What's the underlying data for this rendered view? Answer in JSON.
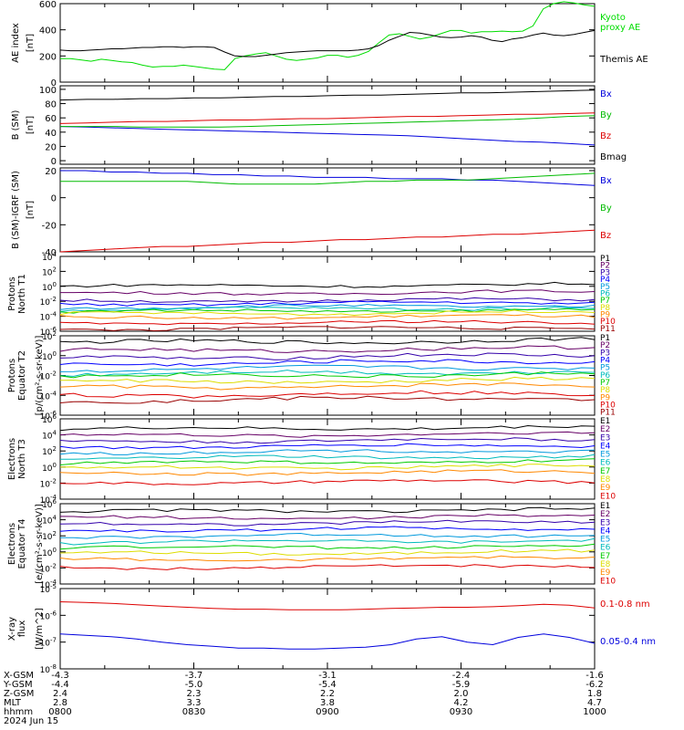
{
  "chart_data": [
    {
      "type": "line",
      "ylabel": "AE index",
      "yunit": "[nT]",
      "ylim": [
        0,
        600
      ],
      "yticks": [
        "0",
        "200",
        "400",
        "600"
      ],
      "series": [
        {
          "name": "Kyoto proxy AE",
          "color": "#00dd00",
          "values": [
            180,
            180,
            170,
            160,
            175,
            165,
            155,
            150,
            130,
            115,
            120,
            120,
            130,
            120,
            110,
            100,
            95,
            180,
            200,
            215,
            225,
            200,
            175,
            165,
            175,
            185,
            205,
            205,
            190,
            205,
            235,
            300,
            360,
            370,
            350,
            330,
            345,
            370,
            395,
            395,
            375,
            385,
            385,
            390,
            385,
            390,
            430,
            560,
            600,
            615,
            605,
            590,
            580
          ]
        },
        {
          "name": "Themis AE",
          "color": "#000000",
          "values": [
            245,
            240,
            240,
            245,
            250,
            255,
            255,
            260,
            265,
            265,
            270,
            270,
            265,
            270,
            270,
            265,
            230,
            200,
            195,
            195,
            205,
            215,
            225,
            230,
            235,
            240,
            240,
            240,
            240,
            245,
            255,
            280,
            320,
            350,
            380,
            375,
            360,
            345,
            340,
            345,
            355,
            345,
            320,
            310,
            330,
            340,
            360,
            375,
            360,
            355,
            365,
            380,
            395
          ]
        }
      ]
    },
    {
      "type": "line",
      "ylabel": "B (SM)",
      "yunit": "[nT]",
      "ylim": [
        -5,
        105
      ],
      "yticks": [
        "0",
        "20",
        "40",
        "60",
        "80",
        "100"
      ],
      "series": [
        {
          "name": "Bx",
          "color": "#0000dd",
          "values": [
            48,
            47,
            46,
            45,
            44,
            43,
            42,
            41,
            40,
            39,
            38,
            37,
            36,
            35,
            33,
            31,
            29,
            27,
            26,
            24,
            22
          ]
        },
        {
          "name": "By",
          "color": "#00bb00",
          "values": [
            48,
            48,
            48,
            47,
            47,
            47,
            47,
            48,
            49,
            50,
            51,
            52,
            53,
            54,
            55,
            56,
            57,
            58,
            60,
            62,
            63
          ]
        },
        {
          "name": "Bz",
          "color": "#dd0000",
          "values": [
            52,
            53,
            54,
            55,
            55,
            56,
            57,
            57,
            58,
            59,
            59,
            60,
            61,
            62,
            62,
            63,
            64,
            65,
            65,
            66,
            67
          ]
        },
        {
          "name": "Bmag",
          "color": "#000000",
          "values": [
            85,
            86,
            86,
            87,
            87,
            88,
            88,
            89,
            90,
            90,
            91,
            92,
            92,
            93,
            94,
            95,
            95,
            96,
            97,
            98,
            99
          ]
        }
      ]
    },
    {
      "type": "line",
      "ylabel": "B (SM)-IGRF (SM)",
      "yunit": "[nT]",
      "ylim": [
        -40,
        22
      ],
      "yticks": [
        "-40",
        "-20",
        "0",
        "20"
      ],
      "series": [
        {
          "name": "Bx",
          "color": "#0000dd",
          "values": [
            20,
            20,
            19,
            19,
            18,
            18,
            17,
            17,
            16,
            16,
            15,
            15,
            15,
            14,
            14,
            14,
            13,
            13,
            12,
            11,
            10,
            9
          ]
        },
        {
          "name": "By",
          "color": "#00bb00",
          "values": [
            12,
            12,
            12,
            12,
            12,
            12,
            11,
            10,
            10,
            10,
            10,
            11,
            12,
            12,
            13,
            13,
            13,
            14,
            15,
            16,
            17,
            18
          ]
        },
        {
          "name": "Bz",
          "color": "#dd0000",
          "values": [
            -40,
            -39,
            -38,
            -37,
            -36,
            -36,
            -35,
            -34,
            -33,
            -33,
            -32,
            -31,
            -31,
            -30,
            -29,
            -29,
            -28,
            -27,
            -27,
            -26,
            -25,
            -24
          ]
        }
      ]
    },
    {
      "type": "line",
      "log_scale": true,
      "ylabel": "Protons North T1",
      "ylim": [
        1e-06,
        10000
      ],
      "yticks": [
        "10<sup>-6</sup>",
        "10<sup>-4</sup>",
        "10<sup>-2</sup>",
        "10<sup>0</sup>",
        "10<sup>2</sup>",
        "10<sup>4</sup>"
      ],
      "series": [
        {
          "name": "P1",
          "color": "#000000",
          "level": 1.0
        },
        {
          "name": "P2",
          "color": "#660066",
          "level": 0.1
        },
        {
          "name": "P3",
          "color": "#3300aa",
          "level": 0.01
        },
        {
          "name": "P4",
          "color": "#0000ff",
          "level": 0.004
        },
        {
          "name": "P5",
          "color": "#0099dd",
          "level": 0.0015
        },
        {
          "name": "P6",
          "color": "#00bbbb",
          "level": 0.0008
        },
        {
          "name": "P7",
          "color": "#00cc00",
          "level": 0.0004
        },
        {
          "name": "P8",
          "color": "#dddd00",
          "level": 0.0002
        },
        {
          "name": "P9",
          "color": "#ff8800",
          "level": 6e-05
        },
        {
          "name": "P10",
          "color": "#dd0000",
          "level": 1e-05
        },
        {
          "name": "P11",
          "color": "#990000",
          "level": 2e-06
        }
      ]
    },
    {
      "type": "line",
      "log_scale": true,
      "ylabel": "Protons Equator T2",
      "yunit": "[p/(cm²-s-sr-keV)]",
      "ylim": [
        1e-06,
        100
      ],
      "yticks": [
        "10<sup>-6</sup>",
        "10<sup>-4</sup>",
        "10<sup>-2</sup>",
        "10<sup>0</sup>",
        "10<sup>2</sup>"
      ],
      "series": [
        {
          "name": "P1",
          "color": "#000000",
          "level": 20
        },
        {
          "name": "P2",
          "color": "#660066",
          "level": 3
        },
        {
          "name": "P3",
          "color": "#3300aa",
          "level": 0.6
        },
        {
          "name": "P4",
          "color": "#0000ff",
          "level": 0.15
        },
        {
          "name": "P5",
          "color": "#0099dd",
          "level": 0.04
        },
        {
          "name": "P6",
          "color": "#00bbbb",
          "level": 0.015
        },
        {
          "name": "P7",
          "color": "#00cc00",
          "level": 0.008
        },
        {
          "name": "P8",
          "color": "#dddd00",
          "level": 0.002
        },
        {
          "name": "P9",
          "color": "#ff8800",
          "level": 0.0006
        },
        {
          "name": "P10",
          "color": "#dd0000",
          "level": 0.0001
        },
        {
          "name": "P11",
          "color": "#990000",
          "level": 3e-05
        }
      ]
    },
    {
      "type": "line",
      "log_scale": true,
      "ylabel": "Electrons North T3",
      "ylim": [
        0.0001,
        1000000.0
      ],
      "yticks": [
        "10<sup>-4</sup>",
        "10<sup>-2</sup>",
        "10<sup>0</sup>",
        "10<sup>2</sup>",
        "10<sup>4</sup>",
        "10<sup>6</sup>"
      ],
      "series": [
        {
          "name": "E1",
          "color": "#000000",
          "level": 50000
        },
        {
          "name": "E2",
          "color": "#660066",
          "level": 8000
        },
        {
          "name": "E3",
          "color": "#3300aa",
          "level": 1500
        },
        {
          "name": "E4",
          "color": "#0000ff",
          "level": 300
        },
        {
          "name": "E5",
          "color": "#0099dd",
          "level": 60
        },
        {
          "name": "E6",
          "color": "#00bbbb",
          "level": 12
        },
        {
          "name": "E7",
          "color": "#00cc00",
          "level": 3
        },
        {
          "name": "E8",
          "color": "#dddd00",
          "level": 0.7
        },
        {
          "name": "E9",
          "color": "#ff8800",
          "level": 0.15
        },
        {
          "name": "E10",
          "color": "#dd0000",
          "level": 0.01
        }
      ]
    },
    {
      "type": "line",
      "log_scale": true,
      "ylabel": "Electrons Equator T4",
      "yunit": "[e/(cm²-s-sr-keV)]",
      "ylim": [
        0.0001,
        1000000.0
      ],
      "yticks": [
        "10<sup>-4</sup>",
        "10<sup>-2</sup>",
        "10<sup>0</sup>",
        "10<sup>2</sup>",
        "10<sup>4</sup>",
        "10<sup>6</sup>"
      ],
      "series": [
        {
          "name": "E1",
          "color": "#000000",
          "level": 100000
        },
        {
          "name": "E2",
          "color": "#660066",
          "level": 15000
        },
        {
          "name": "E3",
          "color": "#3300aa",
          "level": 3000
        },
        {
          "name": "E4",
          "color": "#0000ff",
          "level": 500
        },
        {
          "name": "E5",
          "color": "#0099dd",
          "level": 80
        },
        {
          "name": "E6",
          "color": "#00bbbb",
          "level": 15
        },
        {
          "name": "E7",
          "color": "#00cc00",
          "level": 3
        },
        {
          "name": "E8",
          "color": "#dddd00",
          "level": 0.6
        },
        {
          "name": "E9",
          "color": "#ff8800",
          "level": 0.1
        },
        {
          "name": "E10",
          "color": "#dd0000",
          "level": 0.01
        }
      ]
    },
    {
      "type": "line",
      "log_scale": true,
      "ylabel": "X-ray flux",
      "yunit": "[W/m^2]",
      "ylim": [
        1e-08,
        1e-05
      ],
      "yticks": [
        "10<sup>-8</sup>",
        "10<sup>-7</sup>",
        "10<sup>-6</sup>",
        "10<sup>-5</sup>"
      ],
      "series": [
        {
          "name": "0.1-0.8 nm",
          "color": "#dd0000",
          "values": [
            3.2e-06,
            3e-06,
            2.8e-06,
            2.5e-06,
            2.2e-06,
            2e-06,
            1.8e-06,
            1.7e-06,
            1.7e-06,
            1.6e-06,
            1.6e-06,
            1.6e-06,
            1.7e-06,
            1.8e-06,
            1.9e-06,
            2e-06,
            2e-06,
            2.1e-06,
            2.3e-06,
            2.6e-06,
            2.4e-06,
            1.9e-06
          ]
        },
        {
          "name": "0.05-0.4 nm",
          "color": "#0000dd",
          "values": [
            2e-07,
            1.8e-07,
            1.6e-07,
            1.3e-07,
            1e-07,
            8e-08,
            7e-08,
            6e-08,
            6e-08,
            5.5e-08,
            5.5e-08,
            6e-08,
            6.5e-08,
            8e-08,
            1.3e-07,
            1.6e-07,
            1e-07,
            8e-08,
            1.5e-07,
            2e-07,
            1.5e-07,
            9e-08
          ]
        }
      ]
    }
  ],
  "x_axis": {
    "row_labels": [
      "X-GSM",
      "Y-GSM",
      "Z-GSM",
      "MLT",
      "hhmm",
      "2024 Jun 15"
    ],
    "columns": [
      [
        "-4.3",
        "-4.4",
        "2.4",
        "2.8",
        "0800"
      ],
      [
        "-3.7",
        "-5.0",
        "2.3",
        "3.3",
        "0830"
      ],
      [
        "-3.1",
        "-5.4",
        "2.2",
        "3.8",
        "0900"
      ],
      [
        "-2.4",
        "-5.9",
        "2.0",
        "4.2",
        "0930"
      ],
      [
        "-1.6",
        "-6.2",
        "1.8",
        "4.7",
        "1000"
      ]
    ]
  }
}
